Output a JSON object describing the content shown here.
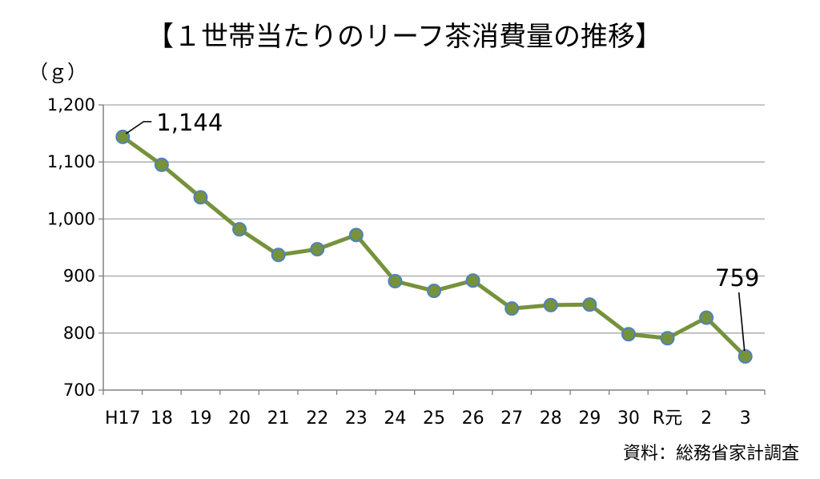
{
  "chart_data": {
    "type": "line",
    "title": "【１世帯当たりのリーフ茶消費量の推移】",
    "ylabel": "（ｇ）",
    "xlabel": "",
    "categories": [
      "H17",
      "18",
      "19",
      "20",
      "21",
      "22",
      "23",
      "24",
      "25",
      "26",
      "27",
      "28",
      "29",
      "30",
      "R元",
      "2",
      "3"
    ],
    "series": [
      {
        "name": "リーフ茶消費量",
        "values": [
          1144,
          1095,
          1038,
          982,
          937,
          947,
          972,
          891,
          874,
          892,
          843,
          849,
          850,
          798,
          791,
          827,
          759
        ]
      }
    ],
    "ylim": [
      700,
      1200
    ],
    "yticks": [
      700,
      800,
      900,
      1000,
      1100,
      1200
    ],
    "ytick_labels": [
      "700",
      "800",
      "900",
      "1,000",
      "1,100",
      "1,200"
    ],
    "grid": true,
    "annotations": [
      {
        "index": 0,
        "text": "1,144"
      },
      {
        "index": 16,
        "text": "759"
      }
    ],
    "source": "資料：総務省家計調査",
    "colors": {
      "line": "#76923C",
      "marker_fill": "#76923C",
      "marker_edge": "#4F81BD",
      "grid": "#A6A6A6",
      "axis": "#808080"
    }
  }
}
